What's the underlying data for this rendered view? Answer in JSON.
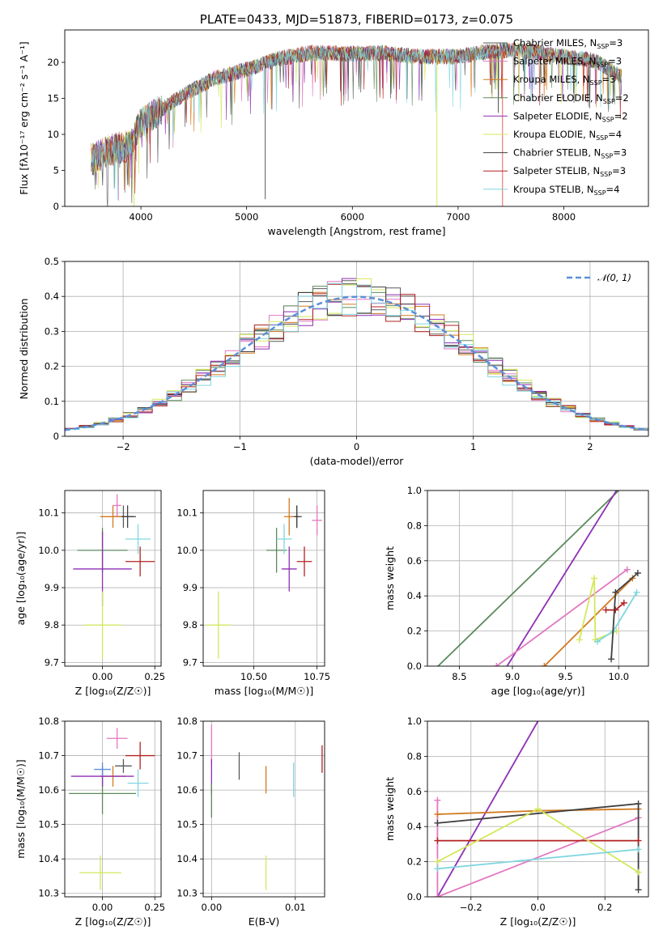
{
  "chart_data": [
    {
      "id": "spectrum",
      "type": "line",
      "title": "PLATE=0433, MJD=51873, FIBERID=0173, z=0.075",
      "xlabel": "wavelength [Angstrom, rest frame]",
      "ylabel": "Flux [fλ10⁻¹⁷ erg cm⁻² s⁻¹ A⁻¹]",
      "xlim": [
        3280,
        8800
      ],
      "ylim": [
        0,
        24.5
      ],
      "xticks": [
        4000,
        5000,
        6000,
        7000,
        8000
      ],
      "yticks": [
        0,
        5,
        10,
        15,
        20
      ],
      "grid": false,
      "legend_position": "top-right",
      "continuum": {
        "x": [
          3530,
          3700,
          3900,
          4000,
          4200,
          4400,
          4700,
          5000,
          5300,
          5600,
          6000,
          6300,
          6600,
          7000,
          7300,
          7600,
          8000,
          8300,
          8550
        ],
        "y": [
          6.5,
          7.8,
          8.5,
          11.5,
          13.5,
          15.5,
          17.8,
          19.0,
          20.5,
          21.3,
          21.2,
          21.3,
          20.8,
          20.8,
          21.5,
          21.7,
          20.8,
          20.2,
          18.0
        ]
      },
      "series": [
        {
          "name": "Chabrier MILES, N_SSP=3",
          "label_main": "Chabrier MILES, N",
          "label_sub": "SSP",
          "label_tail": "=3",
          "color": "#5a5a5a"
        },
        {
          "name": "Salpeter MILES, N_SSP=3",
          "label_main": "Salpeter MILES, N",
          "label_sub": "SSP",
          "label_tail": "=3",
          "color": "#e377c2"
        },
        {
          "name": "Kroupa MILES, N_SSP=3",
          "label_main": "Kroupa MILES, N",
          "label_sub": "SSP",
          "label_tail": "=3",
          "color": "#d2791f"
        },
        {
          "name": "Chabrier ELODIE, N_SSP=2",
          "label_main": "Chabrier ELODIE, N",
          "label_sub": "SSP",
          "label_tail": "=2",
          "color": "#5b8a5b"
        },
        {
          "name": "Salpeter ELODIE, N_SSP=2",
          "label_main": "Salpeter ELODIE, N",
          "label_sub": "SSP",
          "label_tail": "=2",
          "color": "#8e2fb5"
        },
        {
          "name": "Kroupa ELODIE, N_SSP=4",
          "label_main": "Kroupa ELODIE, N",
          "label_sub": "SSP",
          "label_tail": "=4",
          "color": "#d4e85a"
        },
        {
          "name": "Chabrier STELIB, N_SSP=3",
          "label_main": "Chabrier STELIB, N",
          "label_sub": "SSP",
          "label_tail": "=3",
          "color": "#404040"
        },
        {
          "name": "Salpeter STELIB, N_SSP=3",
          "label_main": "Salpeter STELIB, N",
          "label_sub": "SSP",
          "label_tail": "=3",
          "color": "#b22222"
        },
        {
          "name": "Kroupa STELIB, N_SSP=4",
          "label_main": "Kroupa STELIB, N",
          "label_sub": "SSP",
          "label_tail": "=4",
          "color": "#7fd6e0"
        }
      ],
      "absorption_lines": [
        {
          "x": 3934,
          "y": 0.0,
          "color": "#d4e85a"
        },
        {
          "x": 5176,
          "y": 1.0,
          "color": "#5a5a5a"
        },
        {
          "x": 6800,
          "y": 0.0,
          "color": "#d4e85a"
        },
        {
          "x": 7420,
          "y": 0.0,
          "color": "#e8655a"
        },
        {
          "x": 7380,
          "y": 13.0,
          "color": "#5a5a5a"
        }
      ]
    },
    {
      "id": "residuals",
      "type": "histogram",
      "xlabel": "(data-model)/error",
      "ylabel": "Normed distribution",
      "xlim": [
        -2.5,
        2.5
      ],
      "ylim": [
        0,
        0.5
      ],
      "xticks": [
        -2,
        -1,
        0,
        1,
        2
      ],
      "xticklabels": [
        "−2",
        "−1",
        "0",
        "1",
        "2"
      ],
      "yticks": [
        0.0,
        0.1,
        0.2,
        0.3,
        0.4,
        0.5
      ],
      "grid": true,
      "legend_position": "top-right",
      "reference": {
        "name": "𝒩(0, 1)",
        "color": "#5b8fd9",
        "mean": 0,
        "sigma": 1
      },
      "bins": 40
    },
    {
      "id": "age-vs-Z",
      "type": "scatter",
      "xlabel": "Z [log₁₀(Z/Z☉)]",
      "ylabel": "age  [log₁₀(age/yr)]",
      "xlim": [
        -0.18,
        0.28
      ],
      "ylim": [
        9.69,
        10.16
      ],
      "xticks": [
        0.0,
        0.25
      ],
      "xticklabels": [
        "0.00",
        "0.25"
      ],
      "yticks": [
        9.7,
        9.8,
        9.9,
        10.0,
        10.1
      ],
      "yticklabels": [
        "9.7",
        "9.8",
        "9.9",
        "10.0",
        "10.1"
      ],
      "grid": true,
      "points": [
        {
          "x": 0.1,
          "y": 10.09,
          "ex": 0.06,
          "ey": 0.03,
          "color": "#5a5a5a"
        },
        {
          "x": 0.07,
          "y": 10.12,
          "ex": 0.02,
          "ey": 0.03,
          "color": "#e377c2"
        },
        {
          "x": 0.05,
          "y": 10.09,
          "ex": 0.06,
          "ey": 0.03,
          "color": "#d2791f"
        },
        {
          "x": 0.0,
          "y": 10.0,
          "ex": 0.12,
          "ey": 0.06,
          "color": "#5b8a5b"
        },
        {
          "x": 0.0,
          "y": 9.95,
          "ex": 0.14,
          "ey": 0.1,
          "color": "#8e2fb5"
        },
        {
          "x": 0.0,
          "y": 9.8,
          "ex": 0.09,
          "ey": 0.09,
          "color": "#d4e85a"
        },
        {
          "x": 0.12,
          "y": 10.09,
          "ex": 0.03,
          "ey": 0.03,
          "color": "#404040"
        },
        {
          "x": 0.18,
          "y": 9.97,
          "ex": 0.07,
          "ey": 0.04,
          "color": "#b22222"
        },
        {
          "x": 0.17,
          "y": 10.03,
          "ex": 0.06,
          "ey": 0.04,
          "color": "#7fd6e0"
        }
      ]
    },
    {
      "id": "age-vs-mass",
      "type": "scatter",
      "xlabel": "mass [log₁₀(M/M☉)]",
      "ylabel": "",
      "xlim": [
        10.3,
        10.78
      ],
      "ylim": [
        9.69,
        10.16
      ],
      "xticks": [
        10.5,
        10.75
      ],
      "xticklabels": [
        "10.50",
        "10.75"
      ],
      "yticks": [
        9.7,
        9.8,
        9.9,
        10.0,
        10.1
      ],
      "yticklabels": [
        "9.7",
        "9.8",
        "9.9",
        "10.0",
        "10.1"
      ],
      "grid": true,
      "points": [
        {
          "x": 10.67,
          "y": 10.09,
          "ex": 0.02,
          "ey": 0.03,
          "color": "#5a5a5a"
        },
        {
          "x": 10.75,
          "y": 10.08,
          "ex": 0.02,
          "ey": 0.04,
          "color": "#e377c2"
        },
        {
          "x": 10.64,
          "y": 10.09,
          "ex": 0.02,
          "ey": 0.05,
          "color": "#d2791f"
        },
        {
          "x": 10.59,
          "y": 10.0,
          "ex": 0.04,
          "ey": 0.06,
          "color": "#5b8a5b"
        },
        {
          "x": 10.64,
          "y": 9.95,
          "ex": 0.03,
          "ey": 0.06,
          "color": "#8e2fb5"
        },
        {
          "x": 10.36,
          "y": 9.8,
          "ex": 0.05,
          "ey": 0.09,
          "color": "#d4e85a"
        },
        {
          "x": 10.67,
          "y": 10.09,
          "ex": 0.01,
          "ey": 0.03,
          "color": "#404040"
        },
        {
          "x": 10.7,
          "y": 9.97,
          "ex": 0.03,
          "ey": 0.04,
          "color": "#b22222"
        },
        {
          "x": 10.62,
          "y": 10.03,
          "ex": 0.03,
          "ey": 0.04,
          "color": "#7fd6e0"
        }
      ]
    },
    {
      "id": "massweight-vs-age",
      "type": "line",
      "xlabel": "age  [log₁₀(age/yr)]",
      "ylabel": "mass weight",
      "xlim": [
        8.2,
        10.28
      ],
      "ylim": [
        0,
        1.0
      ],
      "xticks": [
        8.5,
        9.0,
        9.5,
        10.0
      ],
      "xticklabels": [
        "8.5",
        "9.0",
        "9.5",
        "10.0"
      ],
      "yticks": [
        0.0,
        0.2,
        0.4,
        0.6,
        0.8,
        1.0
      ],
      "yticklabels": [
        "0.0",
        "0.2",
        "0.4",
        "0.6",
        "0.8",
        "1.0"
      ],
      "grid": true,
      "series": [
        {
          "color": "#5b8a5b",
          "x": [
            8.3,
            10.0
          ],
          "y": [
            0.0,
            1.0
          ],
          "markers": false
        },
        {
          "color": "#8e2fb5",
          "x": [
            8.95,
            9.98
          ],
          "y": [
            0.0,
            1.0
          ],
          "markers": false
        },
        {
          "color": "#e377c2",
          "x": [
            8.85,
            10.08
          ],
          "y": [
            0.0,
            0.55
          ],
          "markers": true
        },
        {
          "color": "#d2791f",
          "x": [
            9.3,
            10.13
          ],
          "y": [
            0.0,
            0.5
          ],
          "markers": true
        },
        {
          "color": "#d4e85a",
          "x": [
            9.63,
            9.77,
            9.78,
            9.98
          ],
          "y": [
            0.15,
            0.5,
            0.15,
            0.2
          ],
          "markers": true
        },
        {
          "color": "#7fd6e0",
          "x": [
            9.8,
            9.95,
            10.17
          ],
          "y": [
            0.14,
            0.2,
            0.42
          ],
          "markers": true
        },
        {
          "color": "#b22222",
          "x": [
            9.88,
            9.97,
            10.05
          ],
          "y": [
            0.32,
            0.32,
            0.36
          ],
          "markers": true
        },
        {
          "color": "#404040",
          "x": [
            9.93,
            9.97,
            10.18
          ],
          "y": [
            0.04,
            0.42,
            0.53
          ],
          "markers": true
        }
      ]
    },
    {
      "id": "mass-vs-Z",
      "type": "scatter",
      "xlabel": "Z [log₁₀(Z/Z☉)]",
      "ylabel": "mass [log₁₀(M/M☉)]",
      "xlim": [
        -0.18,
        0.28
      ],
      "ylim": [
        10.29,
        10.8
      ],
      "xticks": [
        0.0,
        0.25
      ],
      "xticklabels": [
        "0.00",
        "0.25"
      ],
      "yticks": [
        10.3,
        10.4,
        10.5,
        10.6,
        10.7,
        10.8
      ],
      "yticklabels": [
        "10.3",
        "10.4",
        "10.5",
        "10.6",
        "10.7",
        "10.8"
      ],
      "grid": true,
      "points": [
        {
          "x": 0.1,
          "y": 10.67,
          "ex": 0.04,
          "ey": 0.02,
          "color": "#5a5a5a"
        },
        {
          "x": 0.07,
          "y": 10.75,
          "ex": 0.05,
          "ey": 0.03,
          "color": "#e377c2"
        },
        {
          "x": 0.05,
          "y": 10.64,
          "ex": 0.06,
          "ey": 0.03,
          "color": "#d2791f"
        },
        {
          "x": 0.0,
          "y": 10.59,
          "ex": 0.16,
          "ey": 0.06,
          "color": "#5b8a5b"
        },
        {
          "x": 0.0,
          "y": 10.64,
          "ex": 0.15,
          "ey": 0.03,
          "color": "#8e2fb5"
        },
        {
          "x": -0.01,
          "y": 10.36,
          "ex": 0.1,
          "ey": 0.05,
          "color": "#d4e85a"
        },
        {
          "x": 0.0,
          "y": 10.66,
          "ex": 0.04,
          "ey": 0.02,
          "color": "#5b8fd9"
        },
        {
          "x": 0.18,
          "y": 10.7,
          "ex": 0.07,
          "ey": 0.04,
          "color": "#b22222"
        },
        {
          "x": 0.17,
          "y": 10.62,
          "ex": 0.05,
          "ey": 0.04,
          "color": "#7fd6e0"
        }
      ]
    },
    {
      "id": "mass-vs-EBV",
      "type": "scatter",
      "xlabel": "E(B-V)",
      "ylabel": "",
      "xlim": [
        -0.001,
        0.0135
      ],
      "ylim": [
        10.29,
        10.8
      ],
      "xticks": [
        0.0,
        0.01
      ],
      "xticklabels": [
        "0.00",
        "0.01"
      ],
      "yticks": [
        10.3,
        10.4,
        10.5,
        10.6,
        10.7,
        10.8
      ],
      "yticklabels": [
        "10.3",
        "10.4",
        "10.5",
        "10.6",
        "10.7",
        "10.8"
      ],
      "grid": true,
      "points": [
        {
          "x": 0.0,
          "y": 10.73,
          "ey": 0.06,
          "color": "#e377c2"
        },
        {
          "x": 0.0,
          "y": 10.64,
          "ey": 0.05,
          "color": "#8e2fb5"
        },
        {
          "x": 0.0,
          "y": 10.57,
          "ey": 0.05,
          "color": "#5b8a5b"
        },
        {
          "x": 0.0033,
          "y": 10.67,
          "ey": 0.04,
          "color": "#5a5a5a"
        },
        {
          "x": 0.0065,
          "y": 10.63,
          "ey": 0.04,
          "color": "#d2791f"
        },
        {
          "x": 0.0065,
          "y": 10.36,
          "ey": 0.05,
          "color": "#d4e85a"
        },
        {
          "x": 0.0098,
          "y": 10.63,
          "ey": 0.05,
          "color": "#7fd6e0"
        },
        {
          "x": 0.0132,
          "y": 10.69,
          "ey": 0.04,
          "color": "#b22222"
        }
      ]
    },
    {
      "id": "massweight-vs-Z",
      "type": "line",
      "xlabel": "Z [log₁₀(Z/Z☉)]",
      "ylabel": "mass weight",
      "xlim": [
        -0.33,
        0.33
      ],
      "ylim": [
        0,
        1.0
      ],
      "xticks": [
        -0.2,
        0.0,
        0.2
      ],
      "xticklabels": [
        "−0.2",
        "0.0",
        "0.2"
      ],
      "yticks": [
        0.0,
        0.2,
        0.4,
        0.6,
        0.8,
        1.0
      ],
      "yticklabels": [
        "0.0",
        "0.2",
        "0.4",
        "0.6",
        "0.8",
        "1.0"
      ],
      "grid": true,
      "series": [
        {
          "color": "#8e2fb5",
          "x": [
            -0.3,
            0.0
          ],
          "y": [
            0.0,
            1.0
          ],
          "markers": false
        },
        {
          "color": "#e377c2",
          "x": [
            -0.3,
            -0.3,
            0.3
          ],
          "y": [
            0.55,
            0.0,
            0.45
          ],
          "markers": true
        },
        {
          "color": "#d2791f",
          "x": [
            -0.3,
            0.0,
            0.3
          ],
          "y": [
            0.47,
            0.49,
            0.5
          ],
          "markers": true
        },
        {
          "color": "#404040",
          "x": [
            -0.3,
            0.3,
            0.3
          ],
          "y": [
            0.42,
            0.53,
            0.04
          ],
          "markers": true
        },
        {
          "color": "#b22222",
          "x": [
            -0.3,
            0.3
          ],
          "y": [
            0.32,
            0.32
          ],
          "markers": true
        },
        {
          "color": "#d4e85a",
          "x": [
            -0.3,
            0.0,
            0.3
          ],
          "y": [
            0.2,
            0.5,
            0.14
          ],
          "markers": true
        },
        {
          "color": "#7fd6e0",
          "x": [
            -0.3,
            0.3
          ],
          "y": [
            0.16,
            0.27
          ],
          "markers": true
        }
      ]
    }
  ]
}
